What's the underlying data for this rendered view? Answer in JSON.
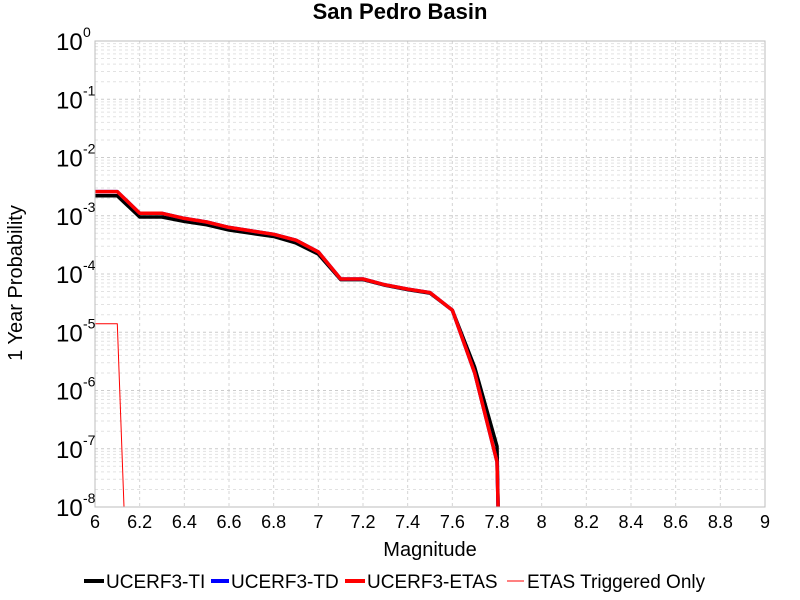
{
  "chart_data": {
    "type": "line",
    "title": "San Pedro Basin",
    "xlabel": "Magnitude",
    "ylabel": "1 Year Probability",
    "xlim": [
      6,
      9
    ],
    "ylim": [
      1e-08,
      1
    ],
    "yscale": "log",
    "grid": true,
    "legend_position": "bottom",
    "x_ticks": [
      "6",
      "6.2",
      "6.4",
      "6.6",
      "6.8",
      "7",
      "7.2",
      "7.4",
      "7.6",
      "7.8",
      "8",
      "8.2",
      "8.4",
      "8.6",
      "8.8",
      "9"
    ],
    "y_ticks": [
      {
        "base": "10",
        "exp": "0"
      },
      {
        "base": "10",
        "exp": "-1"
      },
      {
        "base": "10",
        "exp": "-2"
      },
      {
        "base": "10",
        "exp": "-3"
      },
      {
        "base": "10",
        "exp": "-4"
      },
      {
        "base": "10",
        "exp": "-5"
      },
      {
        "base": "10",
        "exp": "-6"
      },
      {
        "base": "10",
        "exp": "-7"
      },
      {
        "base": "10",
        "exp": "-8"
      }
    ],
    "series": [
      {
        "name": "UCERF3-TI",
        "color": "#000000",
        "width": 3.5,
        "x": [
          6.0,
          6.1,
          6.2,
          6.3,
          6.4,
          6.5,
          6.6,
          6.7,
          6.8,
          6.9,
          7.0,
          7.1,
          7.2,
          7.3,
          7.4,
          7.5,
          7.6,
          7.7,
          7.8,
          7.805
        ],
        "y": [
          0.0022,
          0.0022,
          0.00095,
          0.00095,
          0.0008,
          0.0007,
          0.00057,
          0.0005,
          0.00044,
          0.00034,
          0.00022,
          8e-05,
          8e-05,
          6.4e-05,
          5.4e-05,
          4.7e-05,
          2.4e-05,
          2.5e-06,
          1.1e-07,
          1e-08
        ]
      },
      {
        "name": "UCERF3-TD",
        "color": "#0000ff",
        "width": 3.5,
        "x": [
          6.0,
          6.1,
          6.2,
          6.3,
          6.4,
          6.5,
          6.6,
          6.7,
          6.8,
          6.9,
          7.0,
          7.1,
          7.2,
          7.3,
          7.4,
          7.5,
          7.6,
          7.7,
          7.8,
          7.805
        ],
        "y": [
          0.0026,
          0.0026,
          0.0011,
          0.0011,
          0.0009,
          0.00078,
          0.00063,
          0.00055,
          0.00048,
          0.00038,
          0.00024,
          8.2e-05,
          8.2e-05,
          6.5e-05,
          5.5e-05,
          4.8e-05,
          2.4e-05,
          2e-06,
          6e-08,
          1e-08
        ]
      },
      {
        "name": "UCERF3-ETAS",
        "color": "#ff0000",
        "width": 3.5,
        "x": [
          6.0,
          6.1,
          6.2,
          6.3,
          6.4,
          6.5,
          6.6,
          6.7,
          6.8,
          6.9,
          7.0,
          7.1,
          7.2,
          7.3,
          7.4,
          7.5,
          7.6,
          7.7,
          7.8,
          7.805
        ],
        "y": [
          0.0026,
          0.0026,
          0.0011,
          0.0011,
          0.0009,
          0.00078,
          0.00063,
          0.00055,
          0.00048,
          0.00038,
          0.00024,
          8.2e-05,
          8.2e-05,
          6.5e-05,
          5.5e-05,
          4.8e-05,
          2.4e-05,
          2e-06,
          6e-08,
          1e-08
        ]
      },
      {
        "name": "ETAS Triggered Only",
        "color": "#ff0000",
        "width": 1,
        "x": [
          6.0,
          6.1,
          6.13
        ],
        "y": [
          1.4e-05,
          1.4e-05,
          1e-08
        ]
      }
    ]
  }
}
